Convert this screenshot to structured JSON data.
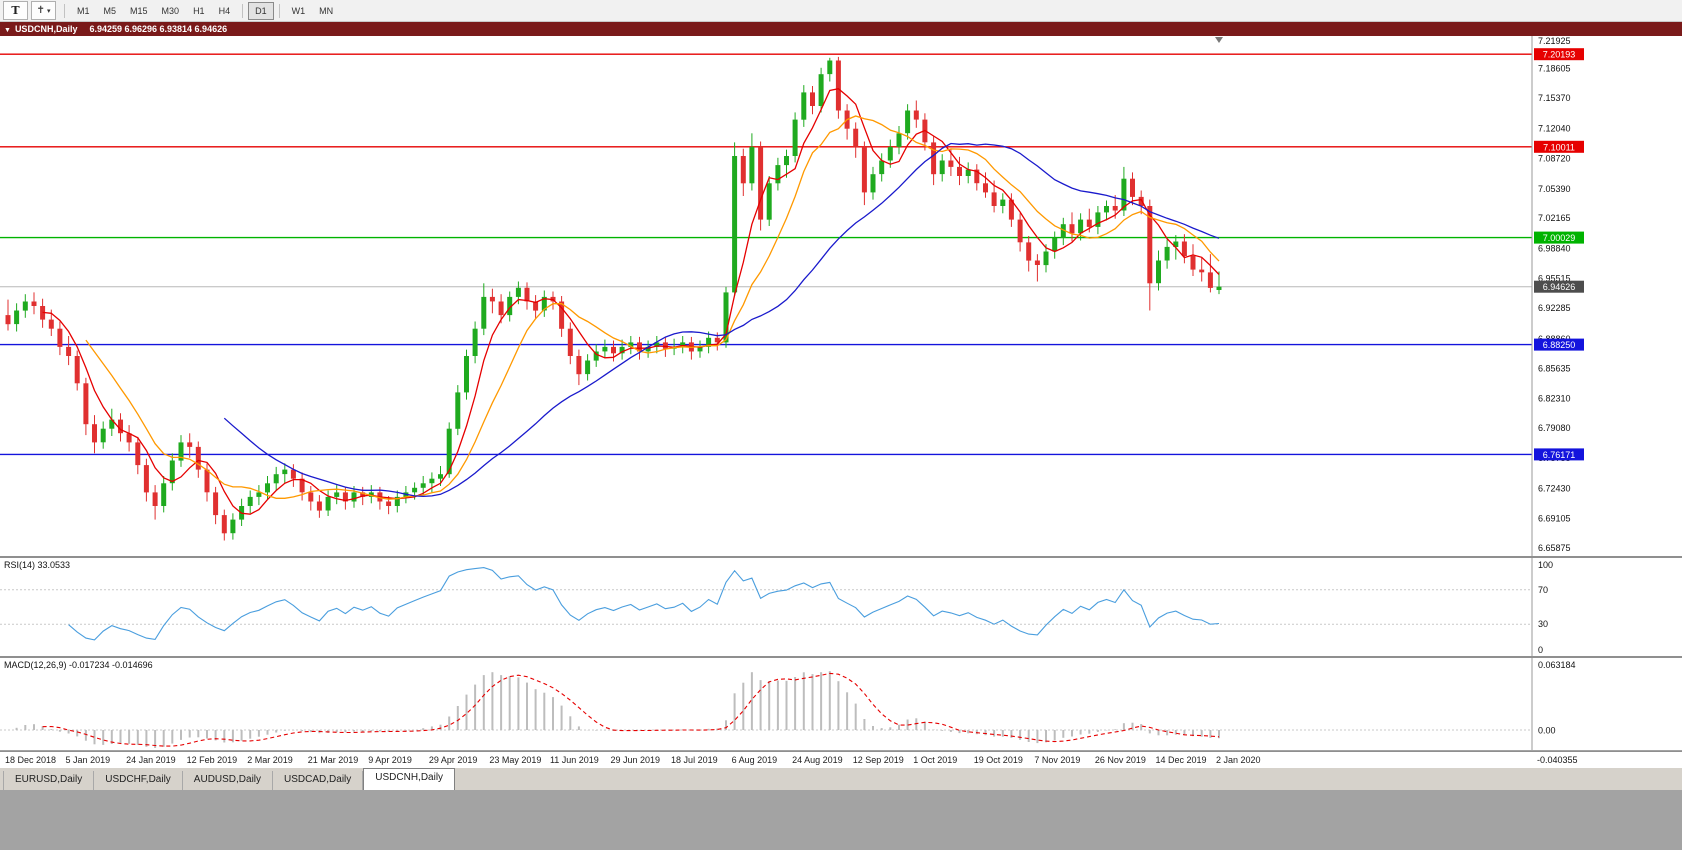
{
  "toolbar": {
    "text_tool_label": "T",
    "timeframes": [
      "M1",
      "M5",
      "M15",
      "M30",
      "H1",
      "H4",
      "D1",
      "W1",
      "MN"
    ],
    "active_timeframe": "D1"
  },
  "chart_header": {
    "symbol": "USDCNH,Daily",
    "ohlc": "6.94259 6.96296 6.93814 6.94626"
  },
  "colors": {
    "bull": "#1faa1f",
    "bear": "#e03030",
    "ma_colors": [
      "#e60000",
      "#ff9900",
      "#1a1acc"
    ],
    "rsi": "#4a9ede",
    "macd_hist": "#bdbdbd",
    "macd_signal": "#e60000",
    "current_badge": "#4d4d4d",
    "level_red": "#e60000",
    "level_green": "#00b300",
    "level_blue": "#1414dd"
  },
  "tabs": {
    "items": [
      "EURUSD,Daily",
      "USDCHF,Daily",
      "AUDUSD,Daily",
      "USDCAD,Daily",
      "USDCNH,Daily"
    ],
    "active_index": 4
  },
  "chart_data": [
    {
      "type": "candlestick",
      "title": "USDCNH,Daily",
      "x_labels": [
        "18 Dec 2018",
        "5 Jan 2019",
        "24 Jan 2019",
        "12 Feb 2019",
        "2 Mar 2019",
        "21 Mar 2019",
        "9 Apr 2019",
        "29 Apr 2019",
        "23 May 2019",
        "11 Jun 2019",
        "29 Jun 2019",
        "18 Jul 2019",
        "6 Aug 2019",
        "24 Aug 2019",
        "12 Sep 2019",
        "1 Oct 2019",
        "19 Oct 2019",
        "7 Nov 2019",
        "26 Nov 2019",
        "14 Dec 2019",
        "2 Jan 2020"
      ],
      "y_ticks": [
        "7.21925",
        "7.18605",
        "7.15370",
        "7.12040",
        "7.08720",
        "7.05390",
        "7.02165",
        "6.98840",
        "6.95515",
        "6.92285",
        "6.88860",
        "6.85635",
        "6.82310",
        "6.79080",
        "6.75755",
        "6.72430",
        "6.69105",
        "6.65875"
      ],
      "y_range": [
        6.65,
        7.222
      ],
      "current_price": 6.94626,
      "current_price_label": "6.94626",
      "horizontal_lines": [
        {
          "price": 7.20193,
          "label": "7.20193",
          "color": "#e60000"
        },
        {
          "price": 7.10011,
          "label": "7.10011",
          "color": "#e60000"
        },
        {
          "price": 7.00029,
          "label": "7.00029",
          "color": "#00b300"
        },
        {
          "price": 6.8825,
          "label": "6.88250",
          "color": "#1414dd"
        },
        {
          "price": 6.76171,
          "label": "6.76171",
          "color": "#1414dd"
        }
      ],
      "moving_averages": [
        {
          "name": "ma-fast",
          "color": "#e60000"
        },
        {
          "name": "ma-mid",
          "color": "#ff9900"
        },
        {
          "name": "ma-slow",
          "color": "#1a1acc"
        }
      ],
      "candles": [
        [
          6.915,
          6.932,
          6.898,
          6.905
        ],
        [
          6.905,
          6.928,
          6.897,
          6.92
        ],
        [
          6.92,
          6.938,
          6.912,
          6.93
        ],
        [
          6.93,
          6.94,
          6.916,
          6.925
        ],
        [
          6.925,
          6.933,
          6.901,
          6.91
        ],
        [
          6.91,
          6.921,
          6.892,
          6.9
        ],
        [
          6.9,
          6.908,
          6.871,
          6.88
        ],
        [
          6.88,
          6.892,
          6.86,
          6.87
        ],
        [
          6.87,
          6.876,
          6.832,
          6.84
        ],
        [
          6.84,
          6.846,
          6.783,
          6.795
        ],
        [
          6.795,
          6.805,
          6.763,
          6.775
        ],
        [
          6.775,
          6.798,
          6.768,
          6.79
        ],
        [
          6.79,
          6.812,
          6.782,
          6.8
        ],
        [
          6.8,
          6.807,
          6.776,
          6.785
        ],
        [
          6.785,
          6.794,
          6.765,
          6.775
        ],
        [
          6.775,
          6.781,
          6.74,
          6.75
        ],
        [
          6.75,
          6.757,
          6.71,
          6.72
        ],
        [
          6.72,
          6.728,
          6.69,
          6.705
        ],
        [
          6.705,
          6.738,
          6.698,
          6.73
        ],
        [
          6.73,
          6.763,
          6.722,
          6.755
        ],
        [
          6.755,
          6.783,
          6.748,
          6.775
        ],
        [
          6.775,
          6.785,
          6.758,
          6.77
        ],
        [
          6.77,
          6.776,
          6.736,
          6.745
        ],
        [
          6.745,
          6.752,
          6.71,
          6.72
        ],
        [
          6.72,
          6.726,
          6.685,
          6.695
        ],
        [
          6.695,
          6.701,
          6.667,
          6.675
        ],
        [
          6.675,
          6.697,
          6.668,
          6.69
        ],
        [
          6.69,
          6.713,
          6.683,
          6.705
        ],
        [
          6.705,
          6.722,
          6.697,
          6.715
        ],
        [
          6.715,
          6.728,
          6.706,
          6.72
        ],
        [
          6.72,
          6.738,
          6.712,
          6.73
        ],
        [
          6.73,
          6.748,
          6.722,
          6.74
        ],
        [
          6.74,
          6.752,
          6.73,
          6.745
        ],
        [
          6.745,
          6.751,
          6.726,
          6.735
        ],
        [
          6.735,
          6.742,
          6.711,
          6.72
        ],
        [
          6.72,
          6.727,
          6.7,
          6.71
        ],
        [
          6.71,
          6.717,
          6.692,
          6.7
        ],
        [
          6.7,
          6.722,
          6.694,
          6.715
        ],
        [
          6.715,
          6.728,
          6.707,
          6.72
        ],
        [
          6.72,
          6.726,
          6.701,
          6.71
        ],
        [
          6.71,
          6.727,
          6.703,
          6.72
        ],
        [
          6.72,
          6.726,
          6.706,
          6.715
        ],
        [
          6.715,
          6.728,
          6.708,
          6.72
        ],
        [
          6.72,
          6.726,
          6.701,
          6.71
        ],
        [
          6.71,
          6.716,
          6.696,
          6.705
        ],
        [
          6.705,
          6.722,
          6.698,
          6.715
        ],
        [
          6.715,
          6.727,
          6.708,
          6.72
        ],
        [
          6.72,
          6.731,
          6.712,
          6.725
        ],
        [
          6.725,
          6.738,
          6.717,
          6.73
        ],
        [
          6.73,
          6.742,
          6.72,
          6.735
        ],
        [
          6.735,
          6.749,
          6.727,
          6.74
        ],
        [
          6.74,
          6.797,
          6.736,
          6.79
        ],
        [
          6.79,
          6.838,
          6.783,
          6.83
        ],
        [
          6.83,
          6.877,
          6.822,
          6.87
        ],
        [
          6.87,
          6.908,
          6.862,
          6.9
        ],
        [
          6.9,
          6.95,
          6.893,
          6.935
        ],
        [
          6.935,
          6.944,
          6.917,
          6.93
        ],
        [
          6.93,
          6.938,
          6.906,
          6.915
        ],
        [
          6.915,
          6.941,
          6.908,
          6.935
        ],
        [
          6.935,
          6.952,
          6.927,
          6.945
        ],
        [
          6.945,
          6.951,
          6.921,
          6.93
        ],
        [
          6.93,
          6.937,
          6.911,
          6.92
        ],
        [
          6.92,
          6.942,
          6.913,
          6.935
        ],
        [
          6.935,
          6.941,
          6.921,
          6.93
        ],
        [
          6.93,
          6.936,
          6.891,
          6.9
        ],
        [
          6.9,
          6.907,
          6.861,
          6.87
        ],
        [
          6.87,
          6.877,
          6.838,
          6.85
        ],
        [
          6.85,
          6.872,
          6.843,
          6.865
        ],
        [
          6.865,
          6.883,
          6.858,
          6.875
        ],
        [
          6.875,
          6.888,
          6.868,
          6.88
        ],
        [
          6.88,
          6.887,
          6.864,
          6.873
        ],
        [
          6.873,
          6.888,
          6.866,
          6.88
        ],
        [
          6.88,
          6.892,
          6.872,
          6.885
        ],
        [
          6.885,
          6.891,
          6.866,
          6.875
        ],
        [
          6.875,
          6.887,
          6.868,
          6.88
        ],
        [
          6.88,
          6.892,
          6.873,
          6.885
        ],
        [
          6.885,
          6.891,
          6.869,
          6.878
        ],
        [
          6.878,
          6.889,
          6.871,
          6.88
        ],
        [
          6.88,
          6.892,
          6.873,
          6.885
        ],
        [
          6.885,
          6.891,
          6.866,
          6.875
        ],
        [
          6.875,
          6.887,
          6.868,
          6.88
        ],
        [
          6.88,
          6.897,
          6.873,
          6.89
        ],
        [
          6.89,
          6.896,
          6.876,
          6.885
        ],
        [
          6.885,
          6.946,
          6.879,
          6.94
        ],
        [
          6.94,
          7.105,
          6.936,
          7.09
        ],
        [
          7.09,
          7.098,
          7.046,
          7.06
        ],
        [
          7.06,
          7.115,
          7.052,
          7.1
        ],
        [
          7.1,
          7.106,
          7.008,
          7.02
        ],
        [
          7.02,
          7.068,
          7.013,
          7.06
        ],
        [
          7.06,
          7.088,
          7.052,
          7.08
        ],
        [
          7.08,
          7.097,
          7.066,
          7.09
        ],
        [
          7.09,
          7.138,
          7.083,
          7.13
        ],
        [
          7.13,
          7.168,
          7.122,
          7.16
        ],
        [
          7.16,
          7.167,
          7.136,
          7.145
        ],
        [
          7.145,
          7.187,
          7.138,
          7.18
        ],
        [
          7.18,
          7.198,
          7.172,
          7.195
        ],
        [
          7.195,
          7.199,
          7.131,
          7.14
        ],
        [
          7.14,
          7.147,
          7.108,
          7.12
        ],
        [
          7.12,
          7.127,
          7.088,
          7.1
        ],
        [
          7.1,
          7.106,
          7.036,
          7.05
        ],
        [
          7.05,
          7.078,
          7.042,
          7.07
        ],
        [
          7.07,
          7.093,
          7.062,
          7.085
        ],
        [
          7.085,
          7.108,
          7.077,
          7.1
        ],
        [
          7.1,
          7.123,
          7.092,
          7.115
        ],
        [
          7.115,
          7.147,
          7.108,
          7.14
        ],
        [
          7.14,
          7.151,
          7.121,
          7.13
        ],
        [
          7.13,
          7.137,
          7.096,
          7.105
        ],
        [
          7.105,
          7.112,
          7.058,
          7.07
        ],
        [
          7.07,
          7.092,
          7.062,
          7.085
        ],
        [
          7.085,
          7.098,
          7.068,
          7.078
        ],
        [
          7.078,
          7.089,
          7.058,
          7.068
        ],
        [
          7.068,
          7.083,
          7.06,
          7.075
        ],
        [
          7.075,
          7.081,
          7.052,
          7.06
        ],
        [
          7.06,
          7.072,
          7.044,
          7.05
        ],
        [
          7.05,
          7.063,
          7.028,
          7.035
        ],
        [
          7.035,
          7.049,
          7.027,
          7.042
        ],
        [
          7.042,
          7.049,
          7.012,
          7.02
        ],
        [
          7.02,
          7.027,
          6.985,
          6.995
        ],
        [
          6.995,
          7.002,
          6.963,
          6.975
        ],
        [
          6.975,
          6.982,
          6.952,
          6.97
        ],
        [
          6.97,
          6.993,
          6.962,
          6.985
        ],
        [
          6.985,
          7.007,
          6.977,
          7.0
        ],
        [
          7.0,
          7.022,
          6.992,
          7.015
        ],
        [
          7.015,
          7.028,
          6.996,
          7.005
        ],
        [
          7.005,
          7.027,
          6.997,
          7.02
        ],
        [
          7.02,
          7.032,
          7.006,
          7.012
        ],
        [
          7.012,
          7.035,
          7.004,
          7.028
        ],
        [
          7.028,
          7.041,
          7.019,
          7.035
        ],
        [
          7.035,
          7.047,
          7.021,
          7.03
        ],
        [
          7.03,
          7.078,
          7.024,
          7.065
        ],
        [
          7.065,
          7.072,
          7.036,
          7.045
        ],
        [
          7.045,
          7.052,
          7.026,
          7.035
        ],
        [
          7.035,
          7.042,
          6.92,
          6.95
        ],
        [
          6.95,
          6.986,
          6.942,
          6.975
        ],
        [
          6.975,
          6.998,
          6.966,
          6.99
        ],
        [
          6.99,
          7.003,
          6.976,
          6.996
        ],
        [
          6.996,
          7.004,
          6.972,
          6.98
        ],
        [
          6.98,
          6.993,
          6.958,
          6.965
        ],
        [
          6.965,
          6.978,
          6.952,
          6.962
        ],
        [
          6.962,
          6.982,
          6.94,
          6.945
        ],
        [
          6.9426,
          6.96296,
          6.93814,
          6.94626
        ]
      ]
    },
    {
      "type": "line",
      "name": "RSI",
      "label": "RSI(14) 33.0533",
      "current": 33.0533,
      "levels": [
        70,
        30
      ],
      "y_ticks": [
        "100",
        "70",
        "30",
        "0"
      ],
      "y_range": [
        0,
        100
      ],
      "color": "#4a9ede",
      "computed_from": "candles closes"
    },
    {
      "type": "bar",
      "name": "MACD",
      "label": "MACD(12,26,9) -0.017234 -0.014696",
      "current": [
        -0.017234,
        -0.014696
      ],
      "y_ticks": [
        "0.063184",
        "0.00",
        "-0.040355"
      ],
      "histogram_color": "#bdbdbd",
      "signal_color": "#e60000",
      "computed_from": "candles closes"
    }
  ]
}
